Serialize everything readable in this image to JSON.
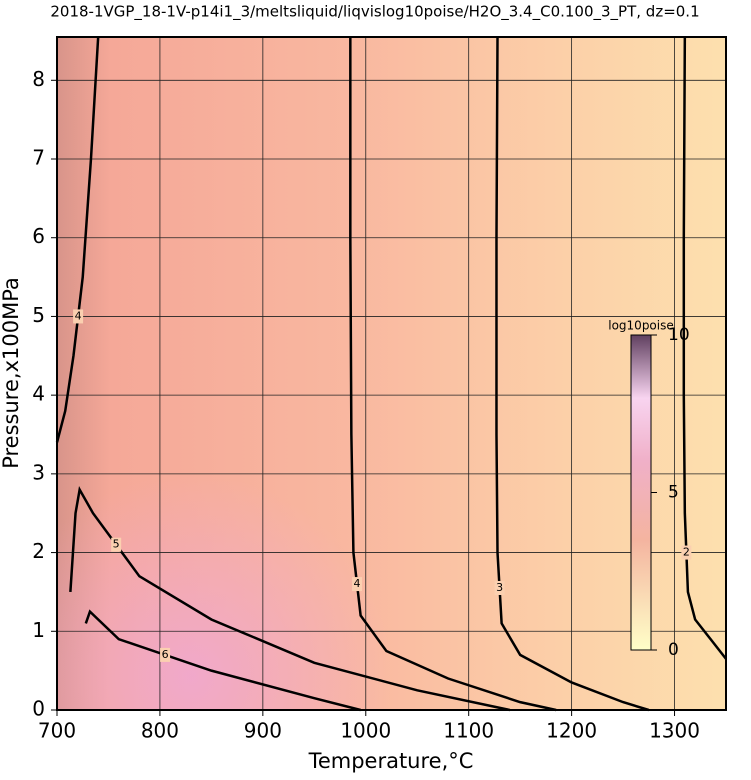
{
  "chart_data": {
    "type": "contour",
    "title": "2018-1VGP_18-1V-p14i1_3/meltsliquid/liqvislog10poise/H2O_3.4_C0.100_3_PT, dz=0.1",
    "xlabel": "Temperature,°C",
    "ylabel": "Pressure,x100MPa",
    "xlim": [
      700,
      1350
    ],
    "ylim": [
      0,
      8.55
    ],
    "xticks": [
      700,
      800,
      900,
      1000,
      1100,
      1200,
      1300
    ],
    "yticks": [
      0,
      1,
      2,
      3,
      4,
      5,
      6,
      7,
      8
    ],
    "grid": true,
    "contours": [
      {
        "level": 2,
        "x": [
          1310,
          1309,
          1309,
          1310,
          1313,
          1320,
          1335,
          1350
        ],
        "y": [
          8.55,
          6,
          4,
          2.5,
          1.5,
          1.15,
          0.9,
          0.65
        ]
      },
      {
        "level": 3,
        "x": [
          1128,
          1127,
          1127,
          1128,
          1132,
          1150,
          1200,
          1250,
          1275
        ],
        "y": [
          8.55,
          6,
          3.5,
          2,
          1.1,
          0.7,
          0.35,
          0.1,
          0
        ]
      },
      {
        "level": 4,
        "x": [
          985,
          985,
          986,
          988,
          995,
          1020,
          1080,
          1150,
          1185
        ],
        "y": [
          8.55,
          6,
          3.5,
          2,
          1.2,
          0.75,
          0.4,
          0.1,
          0
        ]
      },
      {
        "level": 5,
        "x": [
          713,
          718,
          722,
          735,
          780,
          850,
          950,
          1050,
          1140
        ],
        "y": [
          1.5,
          2.5,
          2.8,
          2.5,
          1.7,
          1.15,
          0.6,
          0.25,
          0
        ]
      },
      {
        "level": 6,
        "x": [
          728,
          732,
          760,
          850,
          950,
          995
        ],
        "y": [
          1.1,
          1.25,
          0.9,
          0.5,
          0.15,
          0
        ]
      },
      {
        "level": 4,
        "x": [
          740,
          733,
          725,
          716,
          708,
          700
        ],
        "y": [
          8.55,
          7,
          5.5,
          4.5,
          3.8,
          3.4
        ]
      }
    ],
    "colorbar": {
      "label": "log10poise",
      "lim": [
        0,
        10
      ],
      "ticks": [
        0,
        5,
        10
      ]
    }
  }
}
